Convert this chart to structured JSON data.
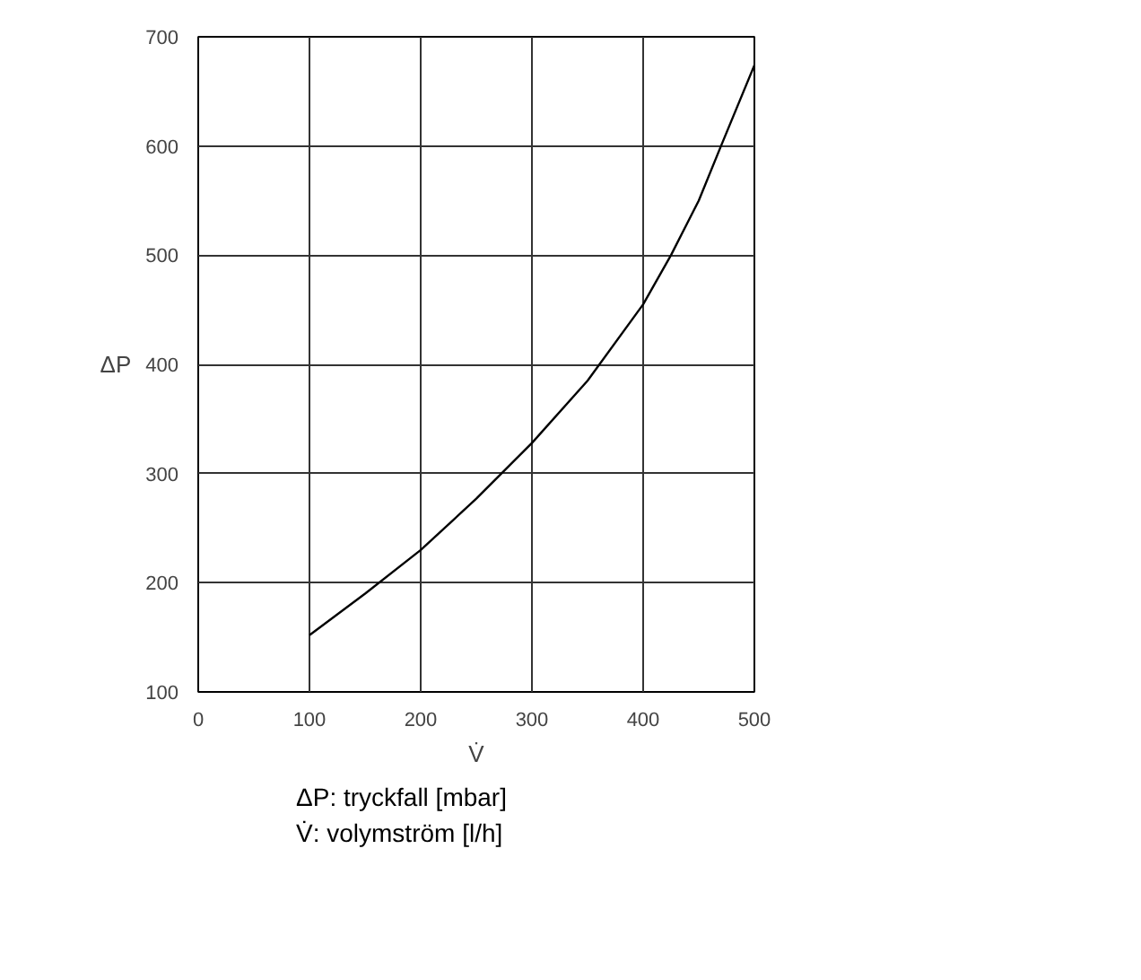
{
  "chart_data": {
    "type": "line",
    "xlabel": "V̇",
    "ylabel": "ΔP",
    "x": [
      100,
      150,
      200,
      250,
      300,
      350,
      400,
      425,
      450,
      470,
      500
    ],
    "series": [
      {
        "color": "#000000",
        "values": [
          152,
          190,
          230,
          277,
          328,
          385,
          455,
          500,
          550,
          600,
          674
        ]
      }
    ],
    "xlim": [
      0,
      500
    ],
    "xticks": [
      0,
      100,
      200,
      300,
      400,
      500
    ],
    "ylim": [
      100,
      700
    ],
    "yticks": [
      100,
      200,
      300,
      400,
      500,
      600,
      700
    ],
    "grid": true,
    "marker": "none",
    "line_style": "solid",
    "annotations": [
      "ΔP: tryckfall [mbar]",
      "V̇: volymström [l/h]"
    ]
  }
}
